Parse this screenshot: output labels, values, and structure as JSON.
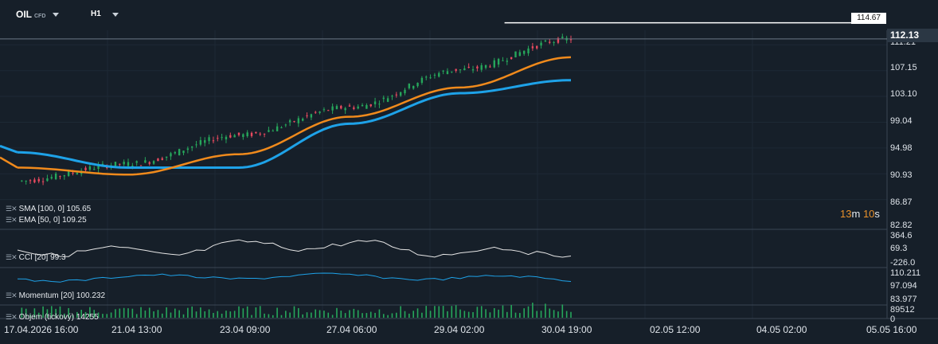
{
  "header": {
    "symbol": "OIL",
    "symbol_suffix": "CFD",
    "timeframe": "H1"
  },
  "last_price": "112.13",
  "high_marker": "114.67",
  "timer": {
    "min": "13",
    "min_unit": "m",
    "sec": "10",
    "sec_unit": "s"
  },
  "indicators": {
    "sma": "SMA [100, 0] 105.65",
    "ema": "EMA [50, 0] 109.25",
    "cci": "CCI [20] 99.3",
    "momentum": "Momentum [20] 100.232",
    "volume": "Objem (tickový) 14255"
  },
  "price_axis": [
    "86.87",
    "90.93",
    "94.98",
    "99.04",
    "103.10",
    "107.15",
    "111.21",
    "82.82"
  ],
  "cci_axis": [
    "364.6",
    "69.3",
    "-226.0"
  ],
  "momentum_axis": [
    "110.211",
    "97.094",
    "83.977"
  ],
  "volume_axis": [
    "89512",
    "0"
  ],
  "time_axis": [
    "17.04.2026 16:00",
    "21.04 13:00",
    "23.04 09:00",
    "27.04 06:00",
    "29.04 02:00",
    "30.04 19:00",
    "02.05 12:00",
    "04.05 02:00",
    "05.05 16:00"
  ],
  "colors": {
    "background": "#161f29",
    "up": "#26a65b",
    "down": "#e84a5f",
    "sma": "#1ea2e8",
    "ema": "#f08a1c",
    "line": "#e6e6e6"
  },
  "chart_data": {
    "type": "line",
    "title": "OIL CFD H1",
    "x": [
      "17.04.2026 16:00",
      "21.04 13:00",
      "23.04 09:00",
      "27.04 06:00",
      "29.04 02:00",
      "30.04 19:00"
    ],
    "close": [
      89.8,
      92.5,
      97.0,
      101.4,
      107.3,
      112.13
    ],
    "series": [
      {
        "name": "SMA [100, 0]",
        "values": [
          94.3,
          91.9,
          91.9,
          98.8,
          103.6,
          105.65
        ]
      },
      {
        "name": "EMA [50, 0]",
        "values": [
          91.9,
          90.8,
          94.0,
          99.9,
          104.5,
          109.25
        ]
      }
    ],
    "ylim": [
      82.82,
      115.5
    ],
    "max_marker": 114.67,
    "last": 112.13
  }
}
